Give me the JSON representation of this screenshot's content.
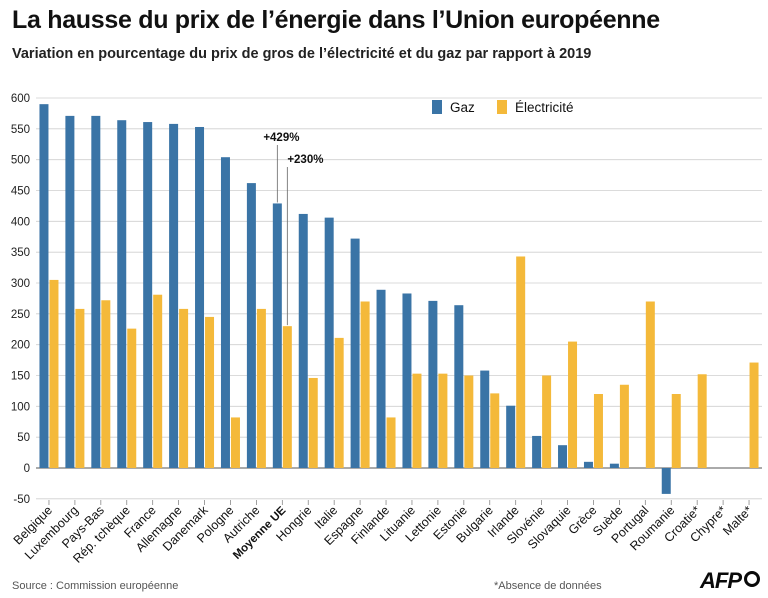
{
  "chart_data": {
    "type": "bar",
    "title": "La hausse du prix de l’énergie dans l’Union européenne",
    "subtitle": "Variation en pourcentage du prix de gros de l’électricité et du gaz par rapport à 2019",
    "categories": [
      "Belgique",
      "Luxembourg",
      "Pays-Bas",
      "Rép. tchèque",
      "France",
      "Allemagne",
      "Danemark",
      "Pologne",
      "Autriche",
      "Moyenne UE",
      "Hongrie",
      "Italie",
      "Espagne",
      "Finlande",
      "Lituanie",
      "Lettonie",
      "Estonie",
      "Bulgarie",
      "Irlande",
      "Slovénie",
      "Slovaquie",
      "Grèce",
      "Suède",
      "Portugal",
      "Roumanie",
      "Croatie*",
      "Chypre*",
      "Malte*"
    ],
    "highlight_category": "Moyenne UE",
    "series": [
      {
        "name": "Gaz",
        "color": "#3a74a6",
        "values": [
          590,
          571,
          571,
          564,
          561,
          558,
          553,
          504,
          462,
          429,
          412,
          406,
          372,
          289,
          283,
          271,
          264,
          158,
          101,
          52,
          37,
          10,
          7,
          null,
          -42,
          null,
          null,
          null
        ]
      },
      {
        "name": "Électricité",
        "color": "#f4b93a",
        "values": [
          305,
          258,
          272,
          226,
          281,
          258,
          245,
          82,
          258,
          230,
          146,
          211,
          270,
          82,
          153,
          153,
          150,
          121,
          343,
          150,
          205,
          120,
          135,
          270,
          120,
          152,
          null,
          171
        ]
      }
    ],
    "ylim": [
      -50,
      600
    ],
    "yticks": [
      -50,
      0,
      50,
      100,
      150,
      200,
      250,
      300,
      350,
      400,
      450,
      500,
      550,
      600
    ],
    "grid": true,
    "legend_position": "top-center",
    "annotations": [
      {
        "text": "+429%",
        "category": "Moyenne UE",
        "series": "Gaz"
      },
      {
        "text": "+230%",
        "category": "Moyenne UE",
        "series": "Électricité"
      }
    ]
  },
  "footer": {
    "source": "Source : Commission européenne",
    "footnote": "*Absence de données",
    "logo": "AFP"
  }
}
